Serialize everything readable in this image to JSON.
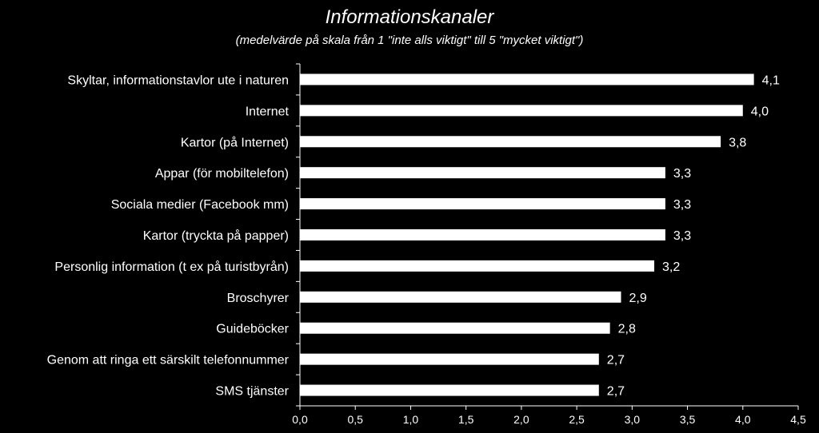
{
  "chart_data": {
    "type": "bar",
    "orientation": "horizontal",
    "title": "Informationskanaler",
    "subtitle": "(medelvärde på skala från 1 \"inte alls viktigt\" till 5 \"mycket viktigt\")",
    "categories": [
      "Skyltar, informationstavlor ute i naturen",
      "Internet",
      "Kartor (på Internet)",
      "Appar (för mobiltelefon)",
      "Sociala medier (Facebook mm)",
      "Kartor (tryckta på papper)",
      "Personlig information (t ex på turistbyrån)",
      "Broschyrer",
      "Guideböcker",
      "Genom att ringa ett särskilt telefonnummer",
      "SMS tjänster"
    ],
    "values": [
      4.1,
      4.0,
      3.8,
      3.3,
      3.3,
      3.3,
      3.2,
      2.9,
      2.8,
      2.7,
      2.7
    ],
    "data_labels": [
      "4,1",
      "4,0",
      "3,8",
      "3,3",
      "3,3",
      "3,3",
      "3,2",
      "2,9",
      "2,8",
      "2,7",
      "2,7"
    ],
    "xlim": [
      0,
      4.5
    ],
    "xticks": [
      0,
      0.5,
      1.0,
      1.5,
      2.0,
      2.5,
      3.0,
      3.5,
      4.0,
      4.5
    ],
    "xtick_labels": [
      "0,0",
      "0,5",
      "1,0",
      "1,5",
      "2,0",
      "2,5",
      "3,0",
      "3,5",
      "4,0",
      "4,5"
    ],
    "grid": false,
    "bar_color": "#ffffff",
    "background_color": "#000000",
    "text_color": "#ffffff"
  }
}
